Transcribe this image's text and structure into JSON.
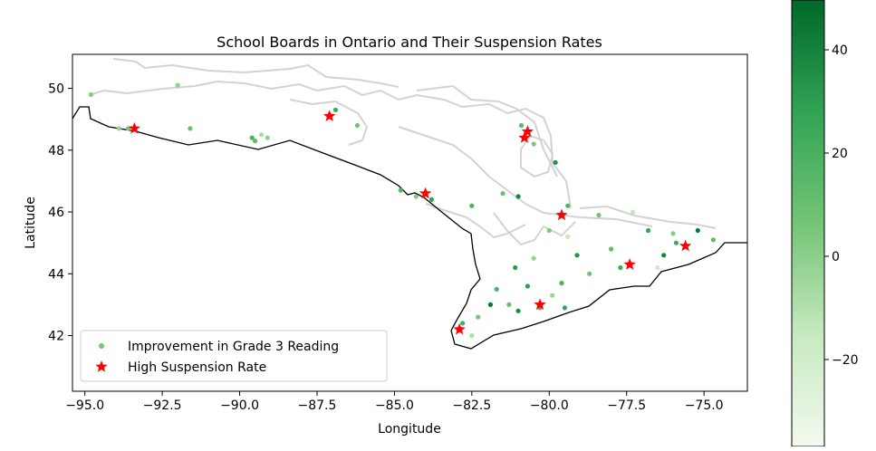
{
  "chart_data": {
    "type": "scatter",
    "title": "School Boards in Ontario and Their Suspension Rates",
    "xlabel": "Longitude",
    "ylabel": "Latitude",
    "xlim": [
      -95.4,
      -73.6
    ],
    "ylim": [
      40.2,
      51.1
    ],
    "xticks": [
      -95.0,
      -92.5,
      -90.0,
      -87.5,
      -85.0,
      -82.5,
      -80.0,
      -77.5,
      -75.0
    ],
    "xtick_labels": [
      "−95.0",
      "−92.5",
      "−90.0",
      "−87.5",
      "−85.0",
      "−82.5",
      "−80.0",
      "−77.5",
      "−75.0"
    ],
    "yticks": [
      42,
      44,
      46,
      48,
      50
    ],
    "ytick_labels": [
      "42",
      "44",
      "46",
      "48",
      "50"
    ],
    "grid": false,
    "legend_position": "lower-left",
    "series": [
      {
        "name": "Improvement in Grade 3 Reading",
        "marker": "dot",
        "color_scale": "Greens",
        "points": [
          [
            -94.8,
            49.8
          ],
          [
            -93.9,
            48.7
          ],
          [
            -93.6,
            48.7
          ],
          [
            -92.0,
            50.1
          ],
          [
            -91.6,
            48.7
          ],
          [
            -89.6,
            48.4
          ],
          [
            -89.3,
            48.5
          ],
          [
            -89.5,
            48.3
          ],
          [
            -89.1,
            48.4
          ],
          [
            -86.9,
            49.3
          ],
          [
            -86.2,
            48.8
          ],
          [
            -84.8,
            46.7
          ],
          [
            -84.3,
            46.5
          ],
          [
            -83.8,
            46.4
          ],
          [
            -82.5,
            46.2
          ],
          [
            -81.5,
            46.6
          ],
          [
            -81.0,
            46.5
          ],
          [
            -80.9,
            48.8
          ],
          [
            -80.5,
            48.2
          ],
          [
            -79.8,
            47.6
          ],
          [
            -79.4,
            46.2
          ],
          [
            -78.4,
            45.9
          ],
          [
            -77.3,
            46.0
          ],
          [
            -76.8,
            45.4
          ],
          [
            -76.0,
            45.3
          ],
          [
            -75.2,
            45.4
          ],
          [
            -74.7,
            45.1
          ],
          [
            -76.5,
            44.2
          ],
          [
            -77.7,
            44.2
          ],
          [
            -78.7,
            44.0
          ],
          [
            -79.1,
            44.6
          ],
          [
            -79.6,
            43.7
          ],
          [
            -79.9,
            43.3
          ],
          [
            -80.7,
            43.6
          ],
          [
            -81.3,
            43.0
          ],
          [
            -81.9,
            43.0
          ],
          [
            -82.3,
            42.6
          ],
          [
            -82.8,
            42.4
          ],
          [
            -82.5,
            42.0
          ],
          [
            -81.0,
            42.8
          ],
          [
            -80.3,
            42.9
          ],
          [
            -79.5,
            42.9
          ],
          [
            -80.5,
            44.5
          ],
          [
            -81.1,
            44.2
          ],
          [
            -79.4,
            45.2
          ],
          [
            -78.0,
            44.8
          ],
          [
            -75.9,
            45.0
          ],
          [
            -76.3,
            44.6
          ],
          [
            -80.0,
            45.4
          ],
          [
            -81.7,
            43.5
          ]
        ],
        "values": [
          5,
          0,
          8,
          3,
          12,
          20,
          -5,
          15,
          2,
          25,
          10,
          18,
          5,
          30,
          22,
          12,
          40,
          15,
          8,
          35,
          20,
          10,
          -10,
          28,
          5,
          45,
          15,
          -15,
          25,
          10,
          35,
          20,
          0,
          30,
          12,
          45,
          8,
          22,
          -5,
          38,
          18,
          28,
          2,
          32,
          -12,
          15,
          25,
          40,
          6,
          20
        ]
      },
      {
        "name": "High Suspension Rate",
        "marker": "star",
        "color": "#ff0000",
        "points": [
          [
            -93.4,
            48.7
          ],
          [
            -87.1,
            49.1
          ],
          [
            -80.8,
            48.4
          ],
          [
            -80.7,
            48.6
          ],
          [
            -84.0,
            46.6
          ],
          [
            -79.6,
            45.9
          ],
          [
            -75.6,
            44.9
          ],
          [
            -77.4,
            44.3
          ],
          [
            -80.3,
            43.0
          ],
          [
            -82.9,
            42.2
          ]
        ]
      }
    ],
    "colorbar": {
      "cmap": "Greens",
      "range": [
        -32,
        50
      ],
      "ticks": [
        -20,
        0,
        20,
        40
      ],
      "tick_labels": [
        "−20",
        "0",
        "20",
        "40"
      ]
    }
  },
  "colors": {
    "boundary_gray": "#d3d3d3",
    "outline": "#000000",
    "star": "#ff0000"
  }
}
